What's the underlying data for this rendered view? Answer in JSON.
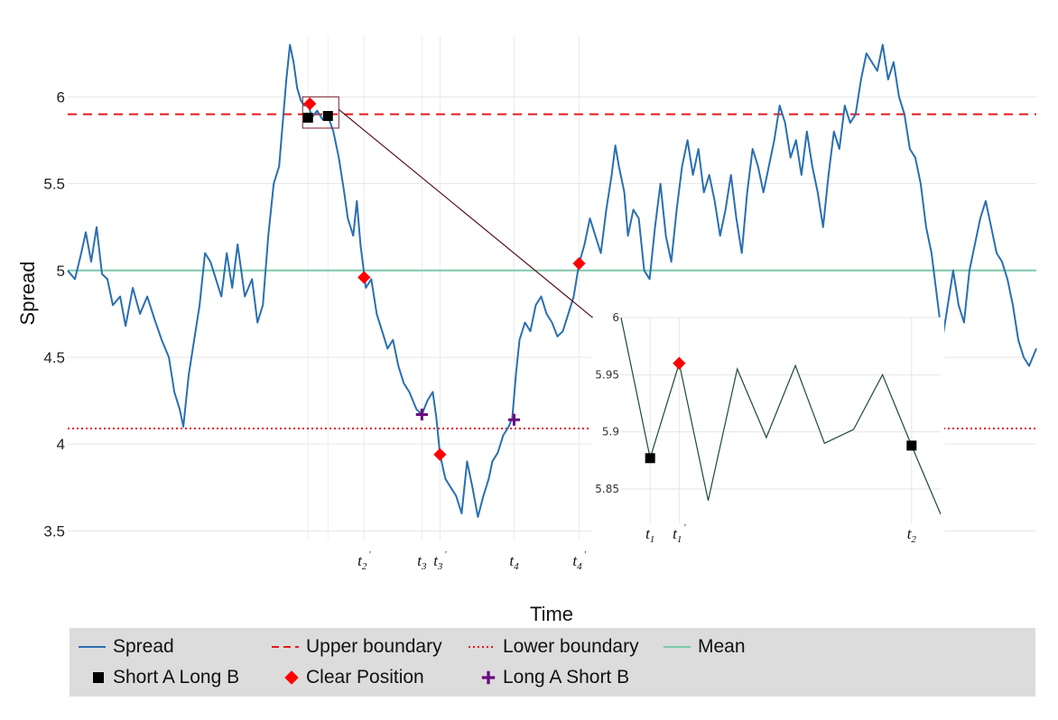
{
  "chart_data": {
    "type": "line",
    "xlabel": "Time",
    "ylabel": "Spread",
    "ylim": [
      3.45,
      6.35
    ],
    "y_ticks": [
      "3.5",
      "4",
      "4.5",
      "5",
      "5.5",
      "6"
    ],
    "grid": true,
    "reference_lines": {
      "upper_boundary": 5.9,
      "lower_boundary": 4.09,
      "mean": 5.0
    },
    "series": [
      {
        "name": "Spread",
        "color": "#2a6fb0",
        "style": "solid",
        "points": [
          [
            0,
            5.0
          ],
          [
            8,
            4.95
          ],
          [
            15,
            5.1
          ],
          [
            20,
            5.22
          ],
          [
            26,
            5.05
          ],
          [
            32,
            5.25
          ],
          [
            38,
            4.98
          ],
          [
            44,
            4.95
          ],
          [
            50,
            4.8
          ],
          [
            58,
            4.85
          ],
          [
            64,
            4.68
          ],
          [
            72,
            4.9
          ],
          [
            80,
            4.75
          ],
          [
            88,
            4.85
          ],
          [
            96,
            4.72
          ],
          [
            104,
            4.6
          ],
          [
            112,
            4.5
          ],
          [
            118,
            4.3
          ],
          [
            124,
            4.2
          ],
          [
            128,
            4.1
          ],
          [
            134,
            4.4
          ],
          [
            140,
            4.6
          ],
          [
            146,
            4.8
          ],
          [
            152,
            5.1
          ],
          [
            158,
            5.05
          ],
          [
            164,
            4.95
          ],
          [
            170,
            4.85
          ],
          [
            176,
            5.1
          ],
          [
            182,
            4.9
          ],
          [
            188,
            5.15
          ],
          [
            196,
            4.85
          ],
          [
            204,
            4.95
          ],
          [
            210,
            4.7
          ],
          [
            216,
            4.8
          ],
          [
            222,
            5.2
          ],
          [
            228,
            5.5
          ],
          [
            234,
            5.6
          ],
          [
            238,
            5.85
          ],
          [
            242,
            6.1
          ],
          [
            246,
            6.3
          ],
          [
            250,
            6.2
          ],
          [
            254,
            6.05
          ],
          [
            258,
            5.98
          ],
          [
            262,
            5.95
          ],
          [
            266,
            5.97
          ],
          [
            270,
            5.88
          ],
          [
            276,
            5.92
          ],
          [
            282,
            5.87
          ],
          [
            288,
            5.89
          ],
          [
            294,
            5.8
          ],
          [
            300,
            5.65
          ],
          [
            306,
            5.45
          ],
          [
            310,
            5.3
          ],
          [
            316,
            5.2
          ],
          [
            320,
            5.4
          ],
          [
            324,
            5.15
          ],
          [
            330,
            4.9
          ],
          [
            336,
            4.95
          ],
          [
            342,
            4.75
          ],
          [
            348,
            4.65
          ],
          [
            354,
            4.55
          ],
          [
            360,
            4.6
          ],
          [
            366,
            4.45
          ],
          [
            372,
            4.35
          ],
          [
            378,
            4.3
          ],
          [
            386,
            4.2
          ],
          [
            392,
            4.17
          ],
          [
            398,
            4.25
          ],
          [
            404,
            4.3
          ],
          [
            408,
            4.15
          ],
          [
            412,
            3.94
          ],
          [
            418,
            3.8
          ],
          [
            424,
            3.75
          ],
          [
            430,
            3.7
          ],
          [
            436,
            3.6
          ],
          [
            442,
            3.9
          ],
          [
            448,
            3.75
          ],
          [
            454,
            3.58
          ],
          [
            460,
            3.7
          ],
          [
            466,
            3.8
          ],
          [
            470,
            3.9
          ],
          [
            476,
            3.95
          ],
          [
            482,
            4.05
          ],
          [
            488,
            4.1
          ],
          [
            492,
            4.15
          ],
          [
            496,
            4.4
          ],
          [
            500,
            4.6
          ],
          [
            506,
            4.7
          ],
          [
            512,
            4.65
          ],
          [
            518,
            4.8
          ],
          [
            524,
            4.85
          ],
          [
            530,
            4.75
          ],
          [
            536,
            4.7
          ],
          [
            542,
            4.62
          ],
          [
            548,
            4.65
          ],
          [
            554,
            4.75
          ],
          [
            560,
            4.85
          ],
          [
            566,
            5.04
          ],
          [
            572,
            5.15
          ],
          [
            578,
            5.3
          ],
          [
            584,
            5.2
          ],
          [
            590,
            5.1
          ],
          [
            596,
            5.35
          ],
          [
            602,
            5.55
          ],
          [
            606,
            5.72
          ],
          [
            610,
            5.6
          ],
          [
            616,
            5.45
          ],
          [
            620,
            5.2
          ],
          [
            626,
            5.35
          ],
          [
            632,
            5.3
          ],
          [
            638,
            5.0
          ],
          [
            644,
            4.95
          ],
          [
            650,
            5.25
          ],
          [
            656,
            5.5
          ],
          [
            662,
            5.2
          ],
          [
            668,
            5.05
          ],
          [
            674,
            5.35
          ],
          [
            680,
            5.6
          ],
          [
            686,
            5.75
          ],
          [
            692,
            5.55
          ],
          [
            698,
            5.7
          ],
          [
            704,
            5.45
          ],
          [
            710,
            5.55
          ],
          [
            716,
            5.4
          ],
          [
            722,
            5.2
          ],
          [
            728,
            5.35
          ],
          [
            734,
            5.55
          ],
          [
            740,
            5.3
          ],
          [
            746,
            5.1
          ],
          [
            752,
            5.45
          ],
          [
            758,
            5.7
          ],
          [
            764,
            5.6
          ],
          [
            770,
            5.45
          ],
          [
            776,
            5.6
          ],
          [
            782,
            5.75
          ],
          [
            788,
            5.95
          ],
          [
            794,
            5.85
          ],
          [
            800,
            5.65
          ],
          [
            806,
            5.75
          ],
          [
            812,
            5.55
          ],
          [
            818,
            5.8
          ],
          [
            824,
            5.6
          ],
          [
            830,
            5.45
          ],
          [
            836,
            5.25
          ],
          [
            842,
            5.55
          ],
          [
            848,
            5.8
          ],
          [
            854,
            5.7
          ],
          [
            860,
            5.95
          ],
          [
            866,
            5.85
          ],
          [
            872,
            5.9
          ],
          [
            878,
            6.1
          ],
          [
            884,
            6.25
          ],
          [
            890,
            6.2
          ],
          [
            896,
            6.15
          ],
          [
            902,
            6.3
          ],
          [
            908,
            6.1
          ],
          [
            914,
            6.2
          ],
          [
            920,
            6.0
          ],
          [
            926,
            5.9
          ],
          [
            932,
            5.7
          ],
          [
            938,
            5.65
          ],
          [
            944,
            5.5
          ],
          [
            950,
            5.25
          ],
          [
            956,
            5.1
          ],
          [
            962,
            4.85
          ],
          [
            968,
            4.6
          ],
          [
            974,
            4.8
          ],
          [
            980,
            5.0
          ],
          [
            986,
            4.8
          ],
          [
            992,
            4.7
          ],
          [
            998,
            5.0
          ],
          [
            1004,
            5.15
          ],
          [
            1010,
            5.3
          ],
          [
            1016,
            5.4
          ],
          [
            1022,
            5.25
          ],
          [
            1028,
            5.1
          ],
          [
            1034,
            5.05
          ],
          [
            1040,
            4.95
          ],
          [
            1046,
            4.8
          ],
          [
            1052,
            4.6
          ],
          [
            1058,
            4.5
          ],
          [
            1064,
            4.45
          ],
          [
            1072,
            4.55
          ]
        ]
      },
      {
        "name": "Upper boundary",
        "color": "#e41a1c",
        "style": "dashed"
      },
      {
        "name": "Lower boundary",
        "color": "#e41a1c",
        "style": "dotted"
      },
      {
        "name": "Mean",
        "color": "#7fc8a9",
        "style": "solid"
      }
    ],
    "markers": [
      {
        "type": "Short A Long B",
        "x": 266,
        "y": 5.88
      },
      {
        "type": "Short A Long B",
        "x": 288,
        "y": 5.89
      },
      {
        "type": "Clear Position",
        "x": 268,
        "y": 5.96
      },
      {
        "type": "Clear Position",
        "x": 328,
        "y": 4.96
      },
      {
        "type": "Clear Position",
        "x": 412,
        "y": 3.94
      },
      {
        "type": "Clear Position",
        "x": 566,
        "y": 5.04
      },
      {
        "type": "Long A Short B",
        "x": 392,
        "y": 4.17
      },
      {
        "type": "Long A Short B",
        "x": 494,
        "y": 4.14
      }
    ],
    "event_labels": [
      {
        "base": "t",
        "sub": "2",
        "prime": true,
        "x": 328
      },
      {
        "base": "t",
        "sub": "3",
        "prime": false,
        "x": 392
      },
      {
        "base": "t",
        "sub": "3",
        "prime": true,
        "x": 412
      },
      {
        "base": "t",
        "sub": "4",
        "prime": false,
        "x": 494
      },
      {
        "base": "t",
        "sub": "4",
        "prime": true,
        "x": 566
      }
    ],
    "inset": {
      "type": "line",
      "ylim": [
        5.82,
        6.0
      ],
      "y_ticks": [
        "5.85",
        "5.9",
        "5.95",
        "6"
      ],
      "line_color": "#1d4a35",
      "points": [
        [
          0,
          6.0
        ],
        [
          1,
          5.877
        ],
        [
          2,
          5.96
        ],
        [
          3,
          5.84
        ],
        [
          4,
          5.955
        ],
        [
          5,
          5.895
        ],
        [
          6,
          5.958
        ],
        [
          7,
          5.89
        ],
        [
          8,
          5.902
        ],
        [
          9,
          5.95
        ],
        [
          10,
          5.888
        ],
        [
          11,
          5.828
        ]
      ],
      "markers": [
        {
          "type": "Short A Long B",
          "x": 1,
          "y": 5.877
        },
        {
          "type": "Clear Position",
          "x": 2,
          "y": 5.96
        },
        {
          "type": "Short A Long B",
          "x": 10,
          "y": 5.888
        }
      ],
      "event_labels": [
        {
          "base": "t",
          "sub": "1",
          "prime": false,
          "x": 1
        },
        {
          "base": "t",
          "sub": "1",
          "prime": true,
          "x": 2
        },
        {
          "base": "t",
          "sub": "2",
          "prime": false,
          "x": 10
        }
      ]
    },
    "legend": {
      "placement": "bottom",
      "items": [
        {
          "label": "Spread",
          "key": "line-solid",
          "color": "#2a6fb0"
        },
        {
          "label": "Upper boundary",
          "key": "line-dashed",
          "color": "#e41a1c"
        },
        {
          "label": "Lower boundary",
          "key": "line-dotted",
          "color": "#e41a1c"
        },
        {
          "label": "Mean",
          "key": "line-solid",
          "color": "#7fc8a9"
        },
        {
          "label": "Short A Long B",
          "key": "square",
          "color": "#000000"
        },
        {
          "label": "Clear Position",
          "key": "diamond",
          "color": "#ff0000"
        },
        {
          "label": "Long A Short B",
          "key": "plus",
          "color": "#6a0d83"
        }
      ]
    }
  }
}
